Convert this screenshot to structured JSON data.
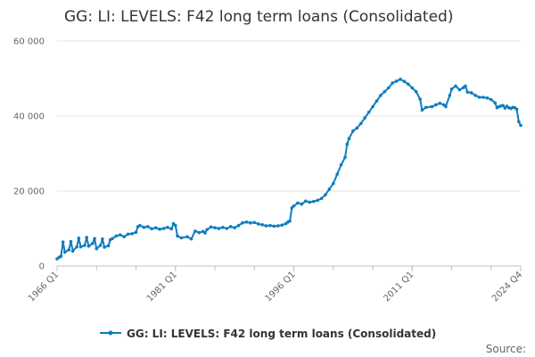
{
  "chart_data": {
    "type": "line",
    "title": "GG: LI: LEVELS: F42 long term loans (Consolidated)",
    "xlabel": "",
    "ylabel": "",
    "x_tick_labels": [
      "1966 Q1",
      "1981 Q1",
      "1996 Q1",
      "2011 Q1",
      "2024 Q4"
    ],
    "y_tick_labels": [
      "0",
      "20 000",
      "40 000",
      "60 000"
    ],
    "ylim": [
      0,
      60000
    ],
    "xlim": [
      1966.0,
      2024.75
    ],
    "grid": true,
    "legend_position": "bottom",
    "source_label": "Source:",
    "series": [
      {
        "name": "GG: LI: LEVELS: F42 long term loans (Consolidated)",
        "color": "#0f7dbf",
        "points": [
          [
            1966.0,
            1900
          ],
          [
            1966.25,
            2300
          ],
          [
            1966.5,
            2600
          ],
          [
            1966.75,
            6400
          ],
          [
            1967.0,
            3700
          ],
          [
            1967.5,
            4300
          ],
          [
            1967.75,
            6500
          ],
          [
            1968.0,
            4000
          ],
          [
            1968.5,
            5100
          ],
          [
            1968.75,
            7400
          ],
          [
            1969.0,
            5100
          ],
          [
            1969.5,
            5500
          ],
          [
            1969.75,
            7600
          ],
          [
            1970.0,
            5300
          ],
          [
            1970.5,
            6000
          ],
          [
            1970.75,
            7300
          ],
          [
            1971.0,
            4600
          ],
          [
            1971.5,
            5500
          ],
          [
            1971.75,
            7200
          ],
          [
            1972.0,
            5000
          ],
          [
            1972.5,
            5400
          ],
          [
            1972.75,
            7000
          ],
          [
            1973.0,
            7300
          ],
          [
            1973.5,
            8000
          ],
          [
            1974.0,
            8300
          ],
          [
            1974.5,
            7800
          ],
          [
            1975.0,
            8500
          ],
          [
            1975.5,
            8600
          ],
          [
            1976.0,
            9000
          ],
          [
            1976.25,
            10500
          ],
          [
            1976.5,
            10800
          ],
          [
            1977.0,
            10300
          ],
          [
            1977.5,
            10500
          ],
          [
            1978.0,
            9900
          ],
          [
            1978.5,
            10200
          ],
          [
            1979.0,
            9800
          ],
          [
            1979.5,
            10000
          ],
          [
            1980.0,
            10300
          ],
          [
            1980.5,
            9900
          ],
          [
            1980.75,
            11300
          ],
          [
            1981.0,
            10800
          ],
          [
            1981.25,
            8000
          ],
          [
            1981.75,
            7500
          ],
          [
            1982.5,
            7800
          ],
          [
            1983.0,
            7200
          ],
          [
            1983.5,
            9300
          ],
          [
            1984.0,
            8900
          ],
          [
            1984.5,
            9200
          ],
          [
            1984.75,
            8800
          ],
          [
            1985.0,
            9700
          ],
          [
            1985.5,
            10400
          ],
          [
            1986.0,
            10200
          ],
          [
            1986.5,
            10000
          ],
          [
            1987.0,
            10300
          ],
          [
            1987.5,
            10000
          ],
          [
            1988.0,
            10500
          ],
          [
            1988.5,
            10200
          ],
          [
            1989.0,
            10800
          ],
          [
            1989.5,
            11500
          ],
          [
            1990.0,
            11700
          ],
          [
            1990.5,
            11500
          ],
          [
            1991.0,
            11600
          ],
          [
            1991.5,
            11200
          ],
          [
            1992.0,
            11000
          ],
          [
            1992.5,
            10700
          ],
          [
            1993.0,
            10800
          ],
          [
            1993.5,
            10600
          ],
          [
            1994.0,
            10700
          ],
          [
            1994.5,
            10900
          ],
          [
            1995.0,
            11300
          ],
          [
            1995.25,
            11700
          ],
          [
            1995.5,
            12000
          ],
          [
            1995.75,
            15500
          ],
          [
            1996.0,
            16000
          ],
          [
            1996.5,
            16800
          ],
          [
            1997.0,
            16500
          ],
          [
            1997.5,
            17300
          ],
          [
            1998.0,
            17000
          ],
          [
            1998.5,
            17200
          ],
          [
            1999.0,
            17500
          ],
          [
            1999.5,
            18000
          ],
          [
            2000.0,
            19000
          ],
          [
            2000.5,
            20500
          ],
          [
            2001.0,
            22000
          ],
          [
            2001.5,
            24500
          ],
          [
            2002.0,
            27000
          ],
          [
            2002.5,
            29000
          ],
          [
            2002.75,
            32500
          ],
          [
            2003.0,
            34000
          ],
          [
            2003.5,
            36000
          ],
          [
            2004.0,
            36800
          ],
          [
            2004.5,
            38000
          ],
          [
            2005.0,
            39500
          ],
          [
            2005.5,
            41000
          ],
          [
            2006.0,
            42500
          ],
          [
            2006.5,
            44000
          ],
          [
            2007.0,
            45500
          ],
          [
            2007.5,
            46500
          ],
          [
            2008.0,
            47500
          ],
          [
            2008.5,
            48800
          ],
          [
            2009.0,
            49300
          ],
          [
            2009.5,
            49800
          ],
          [
            2010.0,
            49200
          ],
          [
            2010.5,
            48500
          ],
          [
            2011.0,
            47500
          ],
          [
            2011.5,
            46500
          ],
          [
            2012.0,
            44500
          ],
          [
            2012.25,
            41600
          ],
          [
            2012.75,
            42300
          ],
          [
            2013.5,
            42500
          ],
          [
            2014.0,
            43000
          ],
          [
            2014.5,
            43400
          ],
          [
            2015.0,
            43000
          ],
          [
            2015.25,
            42500
          ],
          [
            2015.75,
            45500
          ],
          [
            2016.0,
            47200
          ],
          [
            2016.5,
            48000
          ],
          [
            2017.0,
            47000
          ],
          [
            2017.5,
            47600
          ],
          [
            2017.75,
            48000
          ],
          [
            2018.0,
            46400
          ],
          [
            2018.5,
            46200
          ],
          [
            2019.0,
            45500
          ],
          [
            2019.5,
            45000
          ],
          [
            2020.0,
            45000
          ],
          [
            2020.5,
            44800
          ],
          [
            2021.0,
            44400
          ],
          [
            2021.5,
            43500
          ],
          [
            2021.75,
            42200
          ],
          [
            2022.0,
            42500
          ],
          [
            2022.25,
            42700
          ],
          [
            2022.5,
            42800
          ],
          [
            2022.75,
            42100
          ],
          [
            2023.0,
            42600
          ],
          [
            2023.25,
            42200
          ],
          [
            2023.5,
            42000
          ],
          [
            2023.75,
            42300
          ],
          [
            2024.0,
            42200
          ],
          [
            2024.25,
            41800
          ],
          [
            2024.5,
            38500
          ],
          [
            2024.75,
            37500
          ]
        ]
      }
    ]
  }
}
